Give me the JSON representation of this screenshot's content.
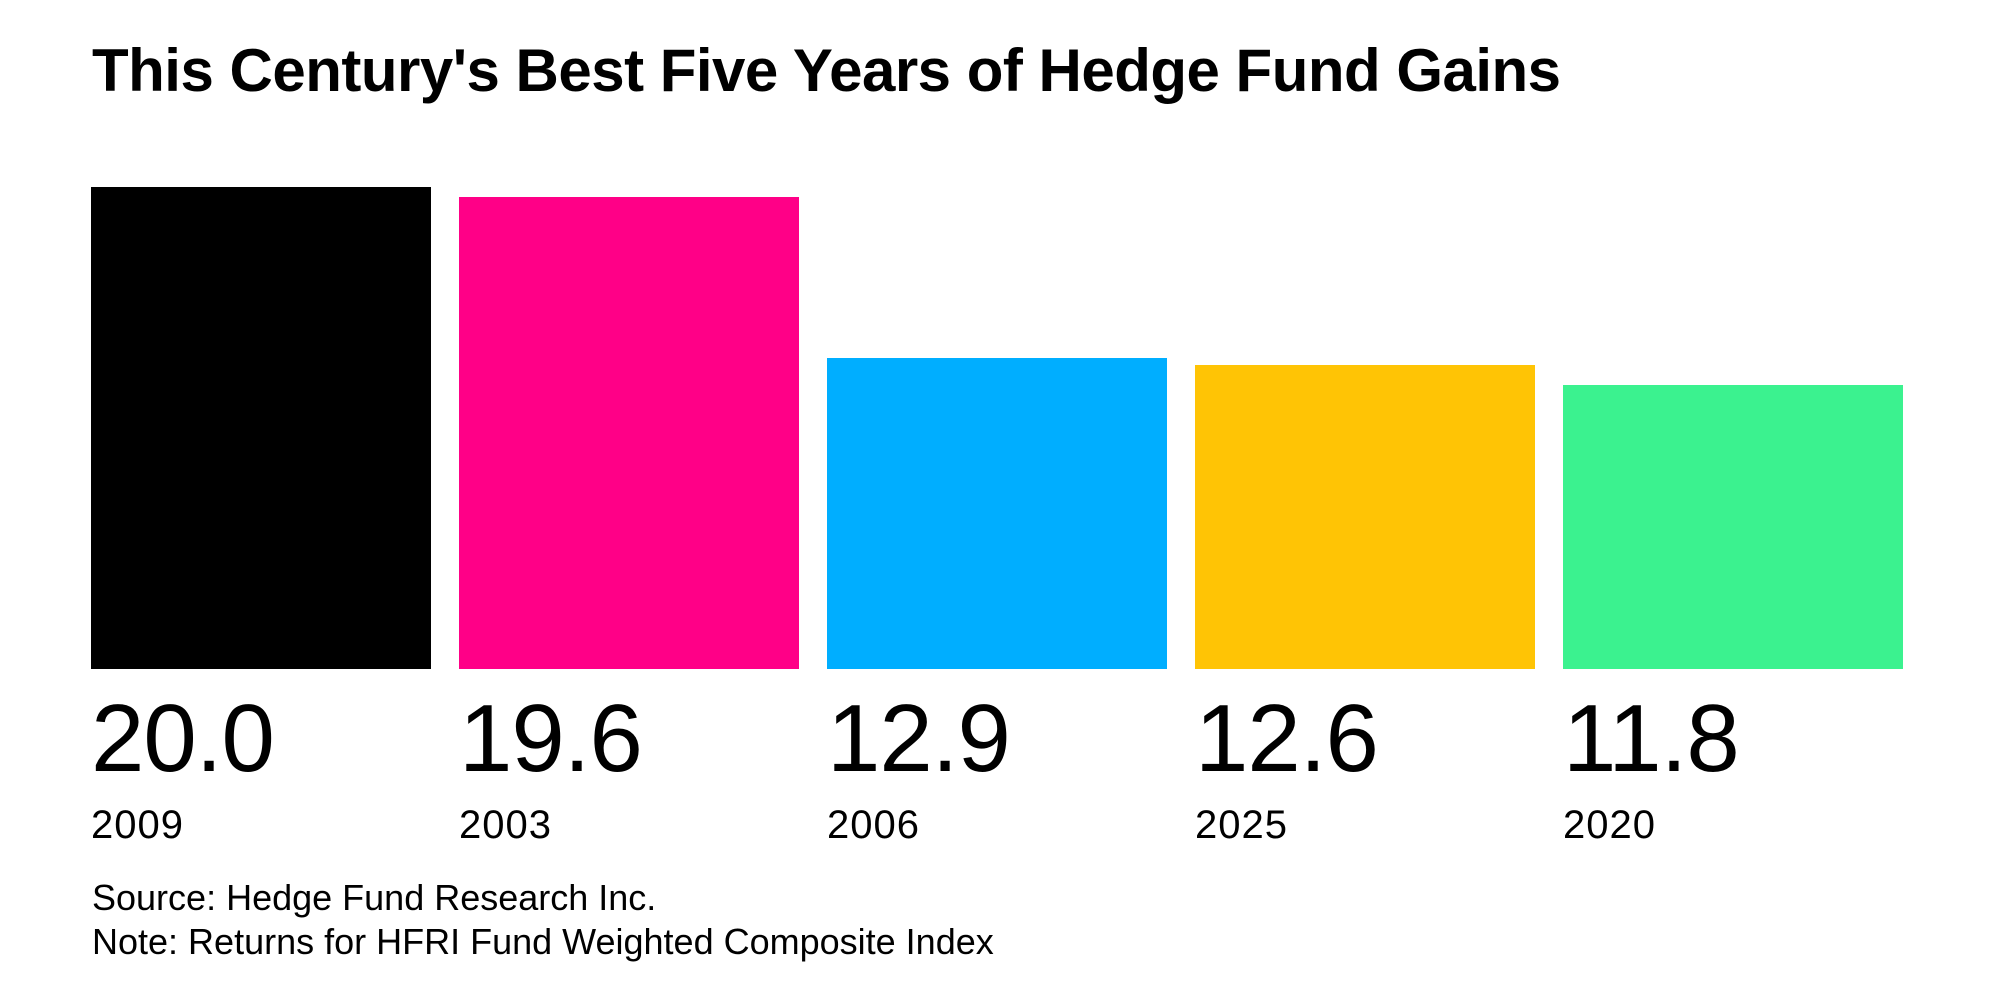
{
  "header": {
    "title": "This Century's Best Five Years of Hedge Fund Gains"
  },
  "chart_data": {
    "type": "bar",
    "title": "This Century's Best Five Years of Hedge Fund Gains",
    "categories": [
      "2009",
      "2003",
      "2006",
      "2025",
      "2020"
    ],
    "values": [
      20.0,
      19.6,
      12.9,
      12.6,
      11.8
    ],
    "bars": [
      {
        "year": "2009",
        "value": 20.0,
        "value_label": "20.0",
        "color": "#000000"
      },
      {
        "year": "2003",
        "value": 19.6,
        "value_label": "19.6",
        "color": "#FF0087"
      },
      {
        "year": "2006",
        "value": 12.9,
        "value_label": "12.9",
        "color": "#00AEFF"
      },
      {
        "year": "2025",
        "value": 12.6,
        "value_label": "12.6",
        "color": "#FFC405"
      },
      {
        "year": "2020",
        "value": 11.8,
        "value_label": "11.8",
        "color": "#3BF28F"
      }
    ],
    "xlabel": "",
    "ylabel": "",
    "ylim": [
      0,
      20
    ],
    "grid": false,
    "legend": "none",
    "axes_visible": false,
    "value_label_position": "below-bar",
    "source": "Source: Hedge Fund Research Inc.",
    "note": "Note: Returns for HFRI Fund Weighted Composite Index"
  },
  "footer": {
    "source_line": "Source: Hedge Fund Research Inc.",
    "note_line": "Note: Returns for HFRI Fund Weighted Composite Index"
  }
}
